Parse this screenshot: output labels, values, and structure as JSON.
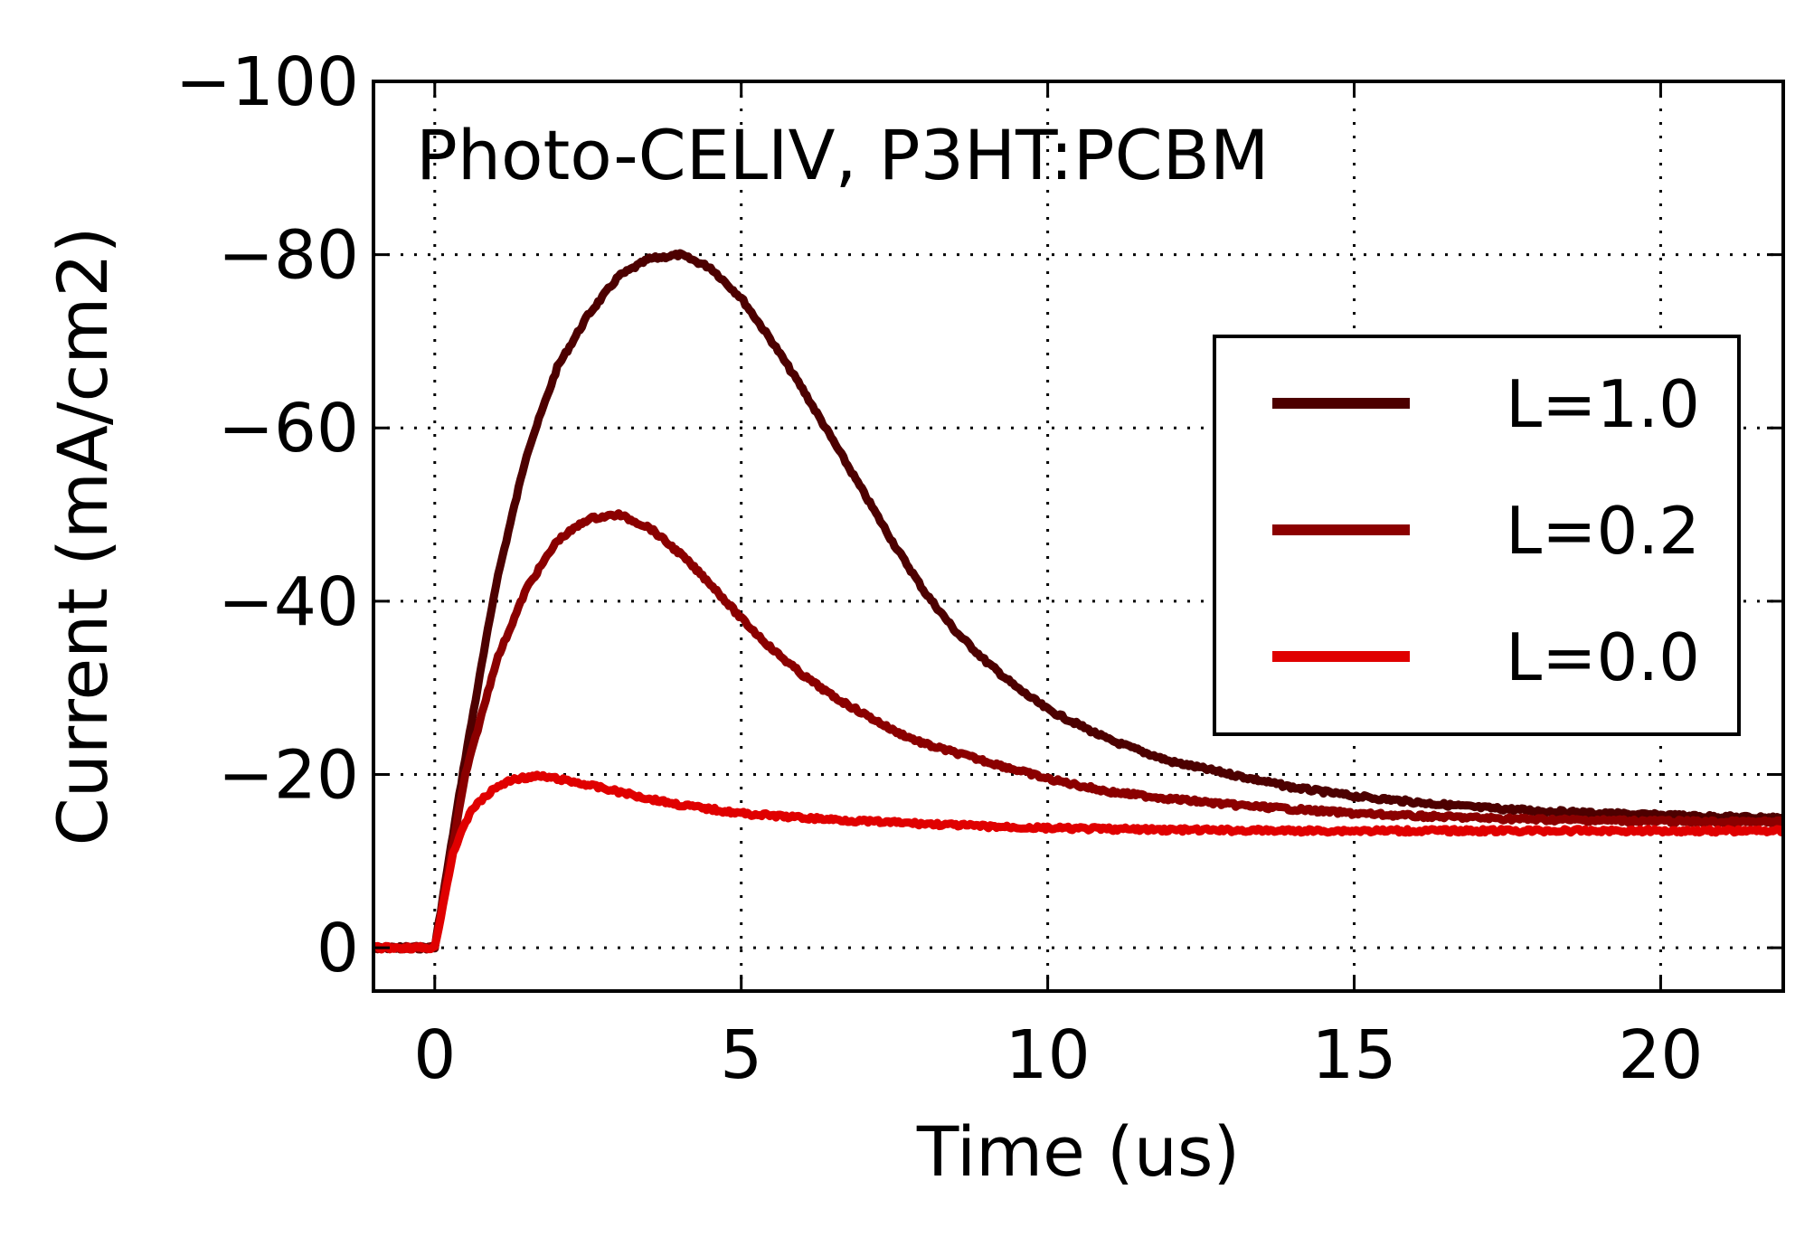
{
  "chart_data": {
    "type": "line",
    "annotation": "Photo-CELIV, P3HT:PCBM",
    "xlabel": "Time (us)",
    "ylabel": "Current (mA/cm2)",
    "xlim": [
      -1,
      22
    ],
    "ylim": [
      5,
      -100
    ],
    "y_inverted": true,
    "grid": true,
    "legend_position": "center-right",
    "x_ticks": [
      0,
      5,
      10,
      15,
      20
    ],
    "x_tick_labels": [
      "0",
      "5",
      "10",
      "15",
      "20"
    ],
    "y_ticks": [
      0,
      -20,
      -40,
      -60,
      -80,
      -100
    ],
    "y_tick_labels": [
      "0",
      "−20",
      "−40",
      "−60",
      "−80",
      "−100"
    ],
    "series": [
      {
        "name": "L=1.0",
        "color": "#4d0000",
        "x": [
          -1,
          0,
          0.5,
          1,
          1.5,
          2,
          2.5,
          3,
          3.5,
          4,
          4.5,
          5,
          5.5,
          6,
          6.5,
          7,
          7.5,
          8,
          8.5,
          9,
          9.5,
          10,
          11,
          12,
          13,
          14,
          15,
          16,
          17,
          18,
          19,
          20,
          21,
          22
        ],
        "y": [
          0,
          0,
          -22,
          -42,
          -57,
          -67,
          -73,
          -77.5,
          -79.5,
          -80,
          -78.5,
          -75,
          -70,
          -64.5,
          -58.5,
          -52.5,
          -46.5,
          -41,
          -36.5,
          -33,
          -30,
          -27.5,
          -24,
          -21.5,
          -20,
          -18.5,
          -17.5,
          -16.8,
          -16.2,
          -15.8,
          -15.5,
          -15.3,
          -15.1,
          -15
        ]
      },
      {
        "name": "L=0.2",
        "color": "#8b0000",
        "x": [
          -1,
          0,
          0.5,
          1,
          1.5,
          2,
          2.5,
          3,
          3.5,
          4,
          4.5,
          5,
          5.5,
          6,
          6.5,
          7,
          7.5,
          8,
          9,
          10,
          11,
          12,
          13,
          14,
          15,
          16,
          17,
          18,
          19,
          20,
          21,
          22
        ],
        "y": [
          0,
          0,
          -20,
          -33,
          -41.5,
          -47,
          -49.5,
          -50,
          -48.5,
          -45.5,
          -42,
          -38,
          -34.5,
          -31.5,
          -29,
          -27,
          -25,
          -23.5,
          -21.5,
          -19.5,
          -18,
          -17.2,
          -16.5,
          -16,
          -15.5,
          -15.2,
          -15,
          -14.8,
          -14.7,
          -14.6,
          -14.5,
          -14.5
        ]
      },
      {
        "name": "L=0.0",
        "color": "#e00000",
        "x": [
          -1,
          0,
          0.3,
          0.6,
          1,
          1.3,
          1.7,
          2,
          2.5,
          3,
          3.5,
          4,
          5,
          6,
          7,
          8,
          9,
          10,
          12,
          14,
          16,
          18,
          20,
          22
        ],
        "y": [
          0,
          0,
          -11,
          -16,
          -18.5,
          -19.5,
          -19.8,
          -19.5,
          -18.8,
          -18,
          -17.2,
          -16.5,
          -15.5,
          -15,
          -14.6,
          -14.3,
          -14,
          -13.8,
          -13.6,
          -13.5,
          -13.5,
          -13.5,
          -13.5,
          -13.5
        ]
      }
    ]
  }
}
